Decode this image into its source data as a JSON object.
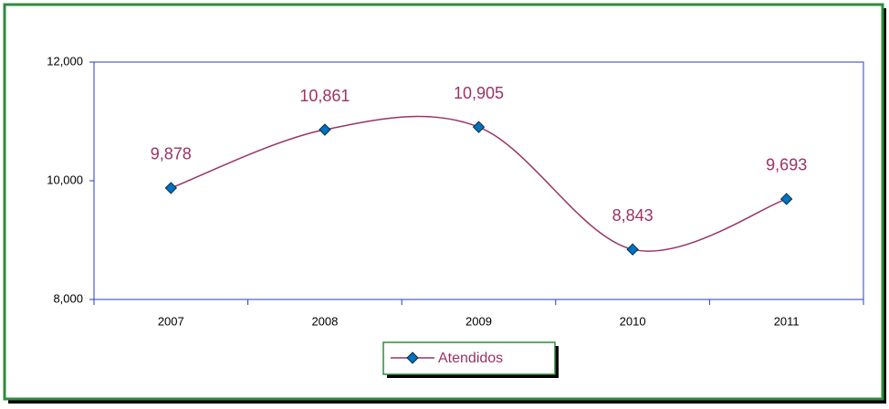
{
  "chart_data": {
    "type": "line",
    "categories": [
      "2007",
      "2008",
      "2009",
      "2010",
      "2011"
    ],
    "series": [
      {
        "name": "Atendidos",
        "color": "#993366",
        "marker_color": "#0070c0",
        "values": [
          9878,
          10861,
          10905,
          8843,
          9693
        ],
        "value_labels": [
          "9,878",
          "10,861",
          "10,905",
          "8,843",
          "9,693"
        ]
      }
    ],
    "ylim": [
      8000,
      12000
    ],
    "yticks": [
      {
        "value": 8000,
        "label": "8,000"
      },
      {
        "value": 10000,
        "label": "10,000"
      },
      {
        "value": 12000,
        "label": "12,000"
      }
    ],
    "smooth": true,
    "grid": false,
    "legend": "bottom"
  }
}
